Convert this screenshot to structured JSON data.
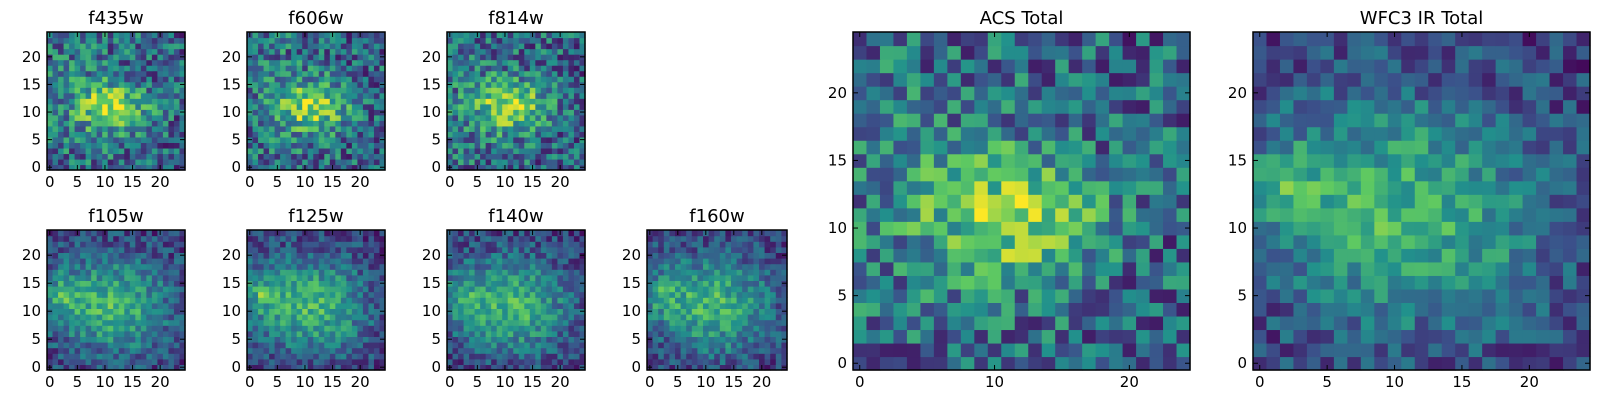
{
  "chart_data": [
    {
      "type": "heatmap",
      "title": "f435w",
      "extent": [
        0,
        24
      ],
      "xticks": [
        0,
        5,
        10,
        15,
        20
      ],
      "yticks": [
        0,
        5,
        10,
        15,
        20
      ],
      "peak": [
        12,
        11
      ],
      "source": "acs",
      "seed": 11
    },
    {
      "type": "heatmap",
      "title": "f606w",
      "extent": [
        0,
        24
      ],
      "xticks": [
        0,
        5,
        10,
        15,
        20
      ],
      "yticks": [
        0,
        5,
        10,
        15,
        20
      ],
      "peak": [
        12,
        11
      ],
      "source": "acs",
      "seed": 23
    },
    {
      "type": "heatmap",
      "title": "f814w",
      "extent": [
        0,
        24
      ],
      "xticks": [
        0,
        5,
        10,
        15,
        20
      ],
      "yticks": [
        0,
        5,
        10,
        15,
        20
      ],
      "peak": [
        12,
        11
      ],
      "source": "acs",
      "seed": 37
    },
    {
      "type": "heatmap",
      "title": "f105w",
      "extent": [
        0,
        24
      ],
      "xticks": [
        0,
        5,
        10,
        15,
        20
      ],
      "yticks": [
        0,
        5,
        10,
        15,
        20
      ],
      "peak": [
        12,
        11
      ],
      "source": "ir",
      "seed": 41
    },
    {
      "type": "heatmap",
      "title": "f125w",
      "extent": [
        0,
        24
      ],
      "xticks": [
        0,
        5,
        10,
        15,
        20
      ],
      "yticks": [
        0,
        5,
        10,
        15,
        20
      ],
      "peak": [
        12,
        11
      ],
      "source": "ir",
      "seed": 53
    },
    {
      "type": "heatmap",
      "title": "f140w",
      "extent": [
        0,
        24
      ],
      "xticks": [
        0,
        5,
        10,
        15,
        20
      ],
      "yticks": [
        0,
        5,
        10,
        15,
        20
      ],
      "peak": [
        12,
        11
      ],
      "source": "ir",
      "seed": 67
    },
    {
      "type": "heatmap",
      "title": "f160w",
      "extent": [
        0,
        24
      ],
      "xticks": [
        0,
        5,
        10,
        15,
        20
      ],
      "yticks": [
        0,
        5,
        10,
        15,
        20
      ],
      "peak": [
        12,
        11
      ],
      "source": "ir",
      "seed": 79
    },
    {
      "type": "heatmap",
      "title": "ACS Total",
      "extent": [
        0,
        24
      ],
      "xticks": [
        0,
        10,
        20
      ],
      "yticks": [
        0,
        5,
        10,
        15,
        20
      ],
      "peak": [
        12,
        11
      ],
      "source": "acs",
      "seed": 97
    },
    {
      "type": "heatmap",
      "title": "WFC3 IR Total",
      "extent": [
        0,
        24
      ],
      "xticks": [
        0,
        5,
        10,
        15,
        20
      ],
      "yticks": [
        0,
        5,
        10,
        15,
        20
      ],
      "peak": [
        12,
        11
      ],
      "source": "ir",
      "seed": 101
    }
  ],
  "colormap": "viridis",
  "colormap_stops": [
    "#440154",
    "#3b528b",
    "#21918c",
    "#5ec962",
    "#fde725"
  ]
}
